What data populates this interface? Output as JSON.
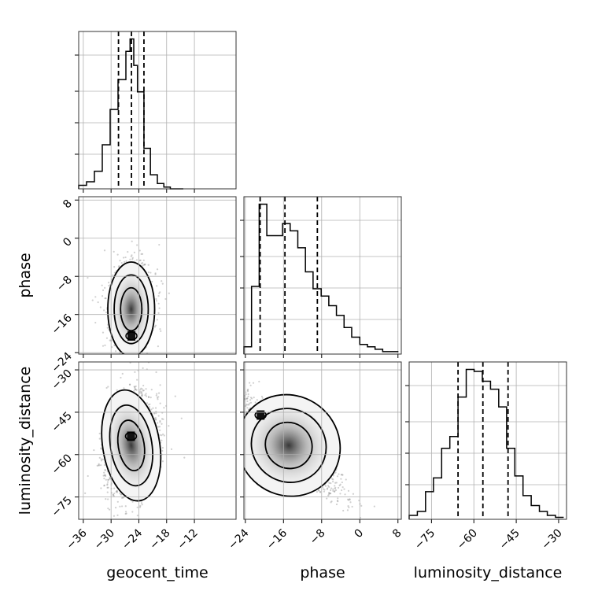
{
  "chart_data": {
    "type": "corner",
    "parameters": [
      "geocent_time",
      "phase",
      "luminosity_distance"
    ],
    "ranges": {
      "geocent_time": [
        -37,
        -3
      ],
      "phase": [
        -24.3,
        8.7
      ],
      "luminosity_distance": [
        -82.9,
        -27.2
      ]
    },
    "ticks": {
      "geocent_time": [
        "-36",
        "-30",
        "-24",
        "-18",
        "-12"
      ],
      "phase": [
        "-24",
        "-16",
        "-8",
        "0",
        "8"
      ],
      "luminosity_distance": [
        "-75",
        "-60",
        "-45",
        "-30"
      ]
    },
    "tick_values": {
      "geocent_time": [
        -36,
        -30,
        -24,
        -18,
        -12
      ],
      "phase": [
        -24,
        -16,
        -8,
        0,
        8
      ],
      "luminosity_distance": [
        -75,
        -60,
        -45,
        -30
      ]
    },
    "quantiles": {
      "geocent_time": [
        -28.4,
        -25.6,
        -22.9
      ],
      "phase": [
        -20.9,
        -15.7,
        -8.9
      ],
      "luminosity_distance": [
        -65.6,
        -56.8,
        -47.9
      ]
    },
    "histograms": {
      "geocent_time": {
        "edges": [
          -37,
          -35.3,
          -33.6,
          -31.9,
          -30.2,
          -28.5,
          -26.8,
          -25.9,
          -25.1,
          -24.3,
          -22.9,
          -21.5,
          -20,
          -18.6,
          -17.2,
          -15.8,
          -14.4
        ],
        "counts": [
          2,
          4,
          10,
          25,
          45,
          62,
          78,
          85,
          70,
          55,
          23,
          8,
          3,
          1,
          0,
          0
        ]
      },
      "phase": {
        "edges": [
          -24.3,
          -22.7,
          -21.1,
          -19.5,
          -17.9,
          -16.2,
          -14.6,
          -13,
          -11.4,
          -9.8,
          -8.1,
          -6.5,
          -4.9,
          -3.3,
          -1.7,
          0,
          1.6,
          3.2,
          4.8,
          6.4,
          8.1
        ],
        "counts": [
          3,
          28,
          62,
          49,
          49,
          54,
          51,
          44,
          34,
          27,
          24,
          20,
          16,
          11,
          7,
          4,
          3,
          2,
          1,
          1
        ]
      },
      "luminosity_distance": {
        "edges": [
          -82.9,
          -80,
          -77.1,
          -74.3,
          -71.4,
          -68.5,
          -65.6,
          -62.7,
          -59.9,
          -57,
          -54.1,
          -51.2,
          -48.4,
          -45.5,
          -42.6,
          -39.7,
          -36.8,
          -34,
          -31.1,
          -28.2
        ],
        "counts": [
          2,
          4,
          14,
          21,
          36,
          42,
          62,
          76,
          75,
          70,
          66,
          57,
          36,
          22,
          12,
          7,
          4,
          2,
          1
        ]
      }
    },
    "density_peaks": {
      "phase_vs_geocent_time": {
        "x": -25.6,
        "y": -20.5
      },
      "luminosity_distance_vs_geocent_time": {
        "x": -25.7,
        "y": -53.5
      },
      "luminosity_distance_vs_phase": {
        "x": -20.8,
        "y": -46.0
      }
    },
    "grid": true
  },
  "labels": {
    "x0": "geocent_time",
    "x1": "phase",
    "x2": "luminosity_distance",
    "y1": "phase",
    "y2": "luminosity_distance"
  }
}
